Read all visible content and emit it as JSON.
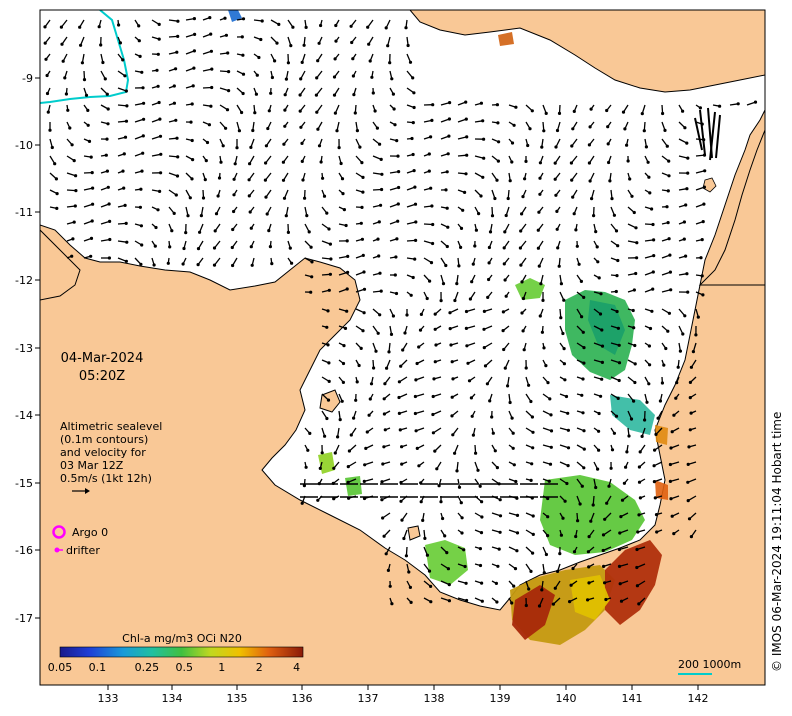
{
  "map": {
    "date": "04-Mar-2024",
    "time": "05:20Z",
    "altimetry_note": [
      "Altimetric sealevel",
      "(0.1m contours)",
      "and velocity for",
      "03 Mar 12Z",
      "0.5m/s (1kt 12h)"
    ],
    "argo_label": "Argo 0",
    "drifter_label": "drifter",
    "colorbar_title": "Chl-a mg/m3 OCi N20",
    "colorbar_ticks": [
      "0.05",
      "0.1",
      "0.25",
      "0.5",
      "1",
      "2",
      "4"
    ],
    "scale_label": "200  1000m",
    "credit": "© IMOS 06-Mar-2024 19:11:04 Hobart time",
    "lon_ticks": [
      "133",
      "134",
      "135",
      "136",
      "137",
      "138",
      "139",
      "140",
      "141",
      "142"
    ],
    "lat_ticks": [
      "-9",
      "-10",
      "-11",
      "-12",
      "-13",
      "-14",
      "-15",
      "-16",
      "-17"
    ],
    "colors": {
      "land": "#f9c896",
      "ocean": "#ffffff",
      "argo": "#ff00ff",
      "drifter": "#ff00ff",
      "bathy_200m": "#00cccc",
      "scale_line": "#00cccc"
    }
  }
}
